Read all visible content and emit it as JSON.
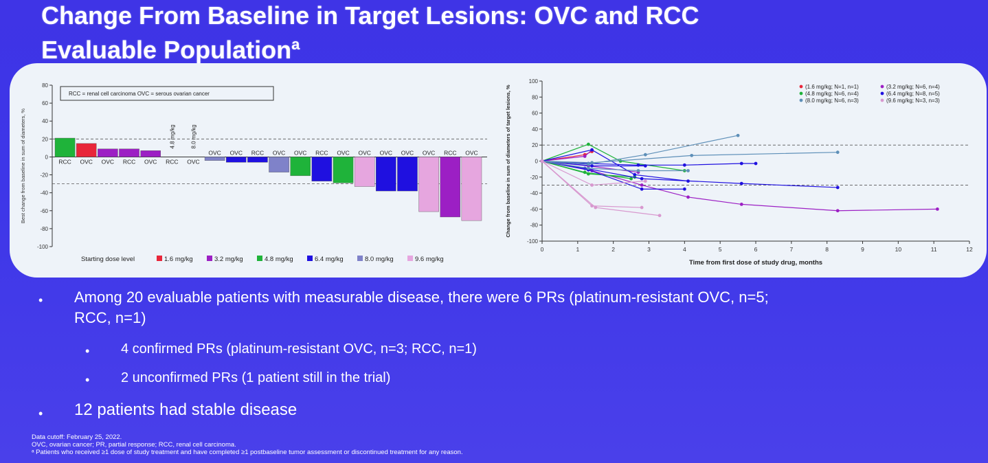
{
  "slide": {
    "title_line1": "Change From Baseline in Target Lesions: OVC and RCC",
    "title_line2": "Evaluable Population",
    "title_superscript": "a"
  },
  "bullets": [
    {
      "text": "Among 20 evaluable patients with measurable disease, there were 6 PRs (platinum-resistant OVC, n=5;"
    },
    {
      "text": "RCC, n=1)"
    },
    {
      "text": "4 confirmed PRs (platinum-resistant OVC, n=3; RCC, n=1)"
    },
    {
      "text": "2 unconfirmed PRs (1 patient still in the trial)"
    },
    {
      "text": "12 patients had stable disease"
    }
  ],
  "footnotes": [
    "Data cutoff: February 25, 2022.",
    "OVC, ovarian cancer; PR, partial response; RCC, renal cell carcinoma.",
    "ᵃ Patients who received ≥1 dose of study treatment and have completed ≥1 postbaseline tumor assessment or discontinued treatment for any reason."
  ],
  "colors": {
    "dose_1_6": "#e8263a",
    "dose_3_2": "#9c1fc4",
    "dose_4_8": "#1fb33a",
    "dose_6_4": "#1f10e0",
    "dose_8_0": "#7f82c9",
    "dose_9_6": "#e6a6df"
  },
  "chart_data": [
    {
      "type": "bar",
      "title": "",
      "xlabel": "",
      "ylabel": "Best change from baseline in sum of diameters, %",
      "ylim": [
        -100,
        80
      ],
      "yticks": [
        80,
        60,
        40,
        20,
        0,
        -20,
        -40,
        -60,
        -80,
        -100
      ],
      "reference_lines": [
        20,
        -30
      ],
      "legend_box_text": "RCC = renal cell carcinoma   OVC = serous ovarian cancer",
      "legend_title": "Starting dose level",
      "legend": [
        {
          "label": "1.6 mg/kg",
          "color": "#e8263a"
        },
        {
          "label": "3.2 mg/kg",
          "color": "#9c1fc4"
        },
        {
          "label": "4.8 mg/kg",
          "color": "#1fb33a"
        },
        {
          "label": "6.4 mg/kg",
          "color": "#1f10e0"
        },
        {
          "label": "8.0 mg/kg",
          "color": "#7f82c9"
        },
        {
          "label": "9.6 mg/kg",
          "color": "#e6a6df"
        }
      ],
      "bars": [
        {
          "category": "RCC",
          "value": 21,
          "dose": "4.8 mg/kg"
        },
        {
          "category": "OVC",
          "value": 15,
          "dose": "1.6 mg/kg"
        },
        {
          "category": "OVC",
          "value": 9,
          "dose": "3.2 mg/kg"
        },
        {
          "category": "RCC",
          "value": 9,
          "dose": "3.2 mg/kg"
        },
        {
          "category": "OVC",
          "value": 7,
          "dose": "3.2 mg/kg"
        },
        {
          "category": "RCC",
          "value": 0,
          "dose": "4.8 mg/kg",
          "label": "4.8 mg/kg"
        },
        {
          "category": "OVC",
          "value": 0,
          "dose": "8.0 mg/kg",
          "label": "8.0 mg/kg"
        },
        {
          "category": "OVC",
          "value": -4,
          "dose": "8.0 mg/kg"
        },
        {
          "category": "OVC",
          "value": -6,
          "dose": "6.4 mg/kg"
        },
        {
          "category": "RCC",
          "value": -6,
          "dose": "6.4 mg/kg"
        },
        {
          "category": "OVC",
          "value": -17,
          "dose": "8.0 mg/kg"
        },
        {
          "category": "OVC",
          "value": -21,
          "dose": "4.8 mg/kg"
        },
        {
          "category": "RCC",
          "value": -27,
          "dose": "6.4 mg/kg"
        },
        {
          "category": "OVC",
          "value": -29,
          "dose": "4.8 mg/kg"
        },
        {
          "category": "OVC",
          "value": -33,
          "dose": "9.6 mg/kg"
        },
        {
          "category": "OVC",
          "value": -38,
          "dose": "6.4 mg/kg"
        },
        {
          "category": "OVC",
          "value": -38,
          "dose": "6.4 mg/kg"
        },
        {
          "category": "OVC",
          "value": -61,
          "dose": "9.6 mg/kg"
        },
        {
          "category": "RCC",
          "value": -67,
          "dose": "3.2 mg/kg"
        },
        {
          "category": "OVC",
          "value": -71,
          "dose": "9.6 mg/kg"
        }
      ]
    },
    {
      "type": "line",
      "title": "",
      "xlabel": "Time from first dose of study drug, months",
      "ylabel": "Change from baseline in sum of diameters of target lesions, %",
      "xlim": [
        0,
        12
      ],
      "ylim": [
        -100,
        100
      ],
      "xticks": [
        0,
        1,
        2,
        3,
        4,
        5,
        6,
        7,
        8,
        9,
        10,
        11,
        12
      ],
      "yticks": [
        100,
        80,
        60,
        40,
        20,
        0,
        -20,
        -40,
        -60,
        -80,
        -100
      ],
      "reference_lines": [
        20,
        -30
      ],
      "legend_placement": "top-right",
      "series": [
        {
          "name": "(1.6 mg/kg; N=1, n=1)",
          "color": "#e8263a",
          "x": [
            0,
            1.2,
            1.4
          ],
          "y": [
            0,
            8,
            12
          ]
        },
        {
          "name": "(3.2 mg/kg; N=6, n=4)",
          "color": "#9c1fc4",
          "lines": [
            {
              "x": [
                0,
                1.4,
                2.8,
                4.1,
                5.6,
                8.3,
                11.1
              ],
              "y": [
                0,
                -12,
                -30,
                -45,
                -54,
                -62,
                -60
              ]
            },
            {
              "x": [
                0,
                1.2,
                1.4
              ],
              "y": [
                0,
                6,
                14
              ]
            },
            {
              "x": [
                0,
                1.3,
                2.7
              ],
              "y": [
                0,
                -6,
                -14
              ]
            }
          ]
        },
        {
          "name": "(4.8 mg/kg; N=6, n=4)",
          "color": "#1fb33a",
          "lines": [
            {
              "x": [
                0,
                1.3,
                2.6
              ],
              "y": [
                0,
                -16,
                -20
              ]
            },
            {
              "x": [
                0,
                1.3,
                2.2,
                4.0
              ],
              "y": [
                0,
                21,
                0,
                -12
              ]
            },
            {
              "x": [
                0,
                1.2,
                2.5
              ],
              "y": [
                0,
                -14,
                -22
              ]
            }
          ]
        },
        {
          "name": "(6.4 mg/kg; N=8, n=5)",
          "color": "#1f10e0",
          "lines": [
            {
              "x": [
                0,
                1.2,
                2.8,
                5.6,
                8.3
              ],
              "y": [
                0,
                -9,
                -22,
                -28,
                -33
              ]
            },
            {
              "x": [
                0,
                1.3,
                2.8,
                4.0
              ],
              "y": [
                0,
                -11,
                -35,
                -35
              ]
            },
            {
              "x": [
                0,
                1.4,
                2.6,
                4.1
              ],
              "y": [
                0,
                14,
                -17,
                -25
              ]
            },
            {
              "x": [
                0,
                1.3,
                2.7,
                4.0,
                5.6,
                6.0
              ],
              "y": [
                0,
                -3,
                -5,
                -5,
                -3,
                -3
              ]
            },
            {
              "x": [
                0,
                1.4,
                2.9
              ],
              "y": [
                0,
                -6,
                -6
              ]
            }
          ]
        },
        {
          "name": "(8.0 mg/kg; N=6, n=3)",
          "color": "#5d8fb8",
          "lines": [
            {
              "x": [
                0,
                1.3,
                2.9,
                5.5
              ],
              "y": [
                0,
                -4,
                8,
                32
              ]
            },
            {
              "x": [
                0,
                1.4,
                4.2,
                8.3
              ],
              "y": [
                0,
                -2,
                7,
                11
              ]
            },
            {
              "x": [
                0,
                1.3,
                2.7,
                4.1
              ],
              "y": [
                0,
                -9,
                -12,
                -12
              ]
            }
          ]
        },
        {
          "name": "(9.6 mg/kg; N=3, n=3)",
          "color": "#d898cf",
          "lines": [
            {
              "x": [
                0,
                1.4,
                2.8
              ],
              "y": [
                0,
                -56,
                -58
              ]
            },
            {
              "x": [
                0,
                1.5,
                3.3
              ],
              "y": [
                0,
                -58,
                -68
              ]
            },
            {
              "x": [
                0,
                1.4,
                2.9
              ],
              "y": [
                0,
                -30,
                -25
              ]
            }
          ]
        }
      ]
    }
  ]
}
